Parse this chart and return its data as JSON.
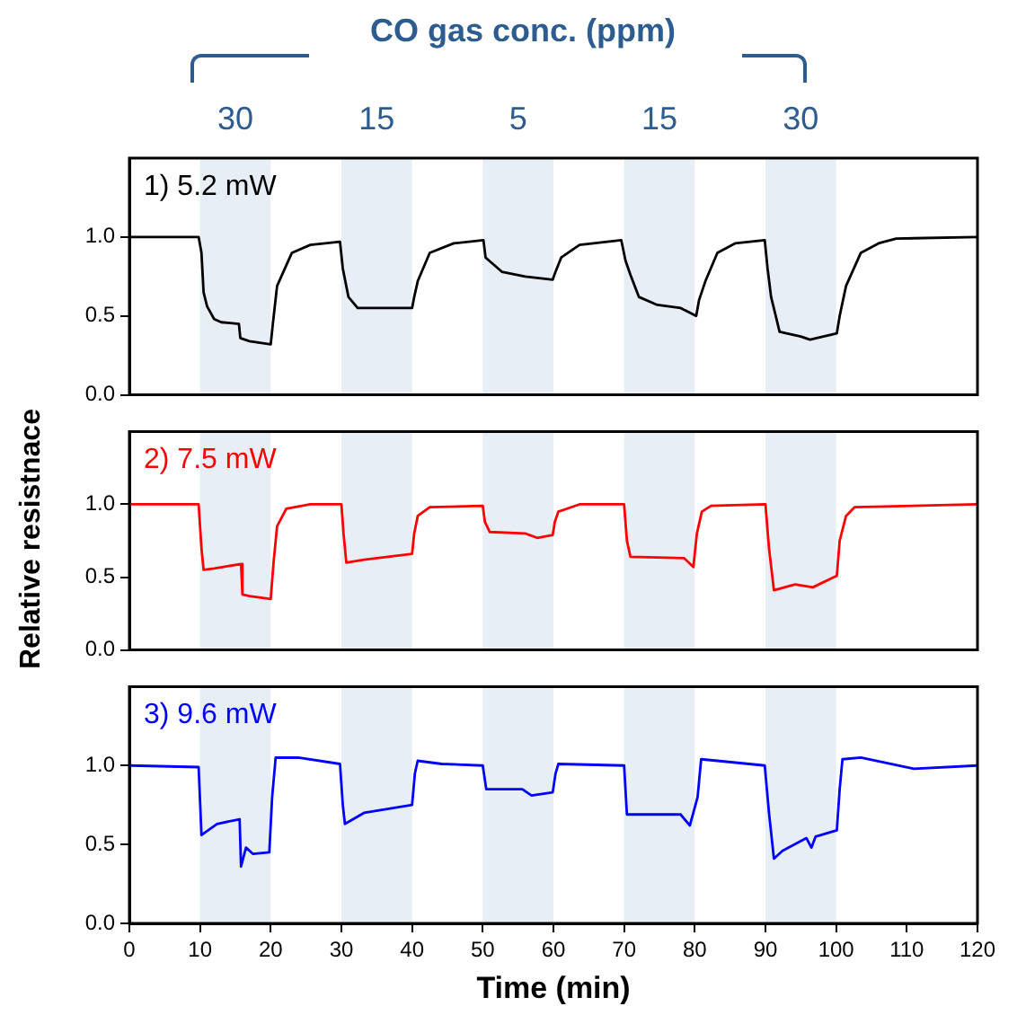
{
  "chart_data": [
    {
      "type": "line",
      "annotations": [
        "CO gas conc. (ppm)"
      ],
      "xlim": [
        0,
        120
      ],
      "xticks": [
        0,
        10,
        20,
        30,
        40,
        50,
        60,
        70,
        80,
        90,
        100,
        110,
        120
      ],
      "ylim": [
        0,
        1.5
      ],
      "yticks": [
        {
          "value": 0,
          "label": "0.0"
        },
        {
          "value": 0.5,
          "label": "0.5"
        },
        {
          "value": 1,
          "label": "1.0"
        }
      ],
      "tick_labels": "y",
      "grid": false,
      "legend": false,
      "marker": "none",
      "bands": [
        {
          "axis": "x",
          "from": 10,
          "to": 20,
          "label": "30",
          "color": "#e8eef6"
        },
        {
          "axis": "x",
          "from": 30,
          "to": 40,
          "label": "15",
          "color": "#e8eef6"
        },
        {
          "axis": "x",
          "from": 50,
          "to": 60,
          "label": "5",
          "color": "#e8eef6"
        },
        {
          "axis": "x",
          "from": 70,
          "to": 80,
          "label": "15",
          "color": "#e8eef6"
        },
        {
          "axis": "x",
          "from": 90,
          "to": 100,
          "label": "30",
          "color": "#e8eef6"
        }
      ],
      "series": [
        {
          "name": "1) 5.2 mW",
          "color": "#000000",
          "x": [
            0,
            9.8,
            10.2,
            10.5,
            11,
            12,
            13,
            15.5,
            15.7,
            17,
            20,
            20.3,
            20.9,
            23,
            25.6,
            29.8,
            30.2,
            31,
            32.3,
            40,
            40.3,
            40.8,
            42.5,
            45.9,
            50.1,
            50.4,
            52.7,
            56,
            59.9,
            60.3,
            61.1,
            63.7,
            69.6,
            70.2,
            70.9,
            72.1,
            74.7,
            78,
            80.2,
            80.6,
            81.5,
            83.2,
            85.7,
            89.9,
            90.3,
            90.8,
            92,
            95,
            96.3,
            100.1,
            100.5,
            101.4,
            103.5,
            106,
            108.5,
            120
          ],
          "values": [
            1.0,
            1.0,
            0.9,
            0.65,
            0.56,
            0.48,
            0.46,
            0.45,
            0.36,
            0.34,
            0.32,
            0.45,
            0.69,
            0.9,
            0.95,
            0.97,
            0.8,
            0.62,
            0.55,
            0.55,
            0.62,
            0.72,
            0.9,
            0.96,
            0.98,
            0.87,
            0.78,
            0.75,
            0.73,
            0.78,
            0.87,
            0.95,
            0.98,
            0.85,
            0.76,
            0.62,
            0.57,
            0.55,
            0.5,
            0.6,
            0.72,
            0.9,
            0.96,
            0.98,
            0.8,
            0.62,
            0.4,
            0.37,
            0.35,
            0.39,
            0.5,
            0.69,
            0.9,
            0.96,
            0.99,
            1.0
          ]
        }
      ]
    },
    {
      "type": "line",
      "ylabel": "Relative resistnace",
      "xlim": [
        0,
        120
      ],
      "xticks": [
        0,
        10,
        20,
        30,
        40,
        50,
        60,
        70,
        80,
        90,
        100,
        110,
        120
      ],
      "ylim": [
        0,
        1.5
      ],
      "yticks": [
        {
          "value": 0,
          "label": "0.0"
        },
        {
          "value": 0.5,
          "label": "0.5"
        },
        {
          "value": 1,
          "label": "1.0"
        }
      ],
      "tick_labels": "y",
      "grid": false,
      "legend": false,
      "marker": "none",
      "bands": [
        {
          "axis": "x",
          "from": 10,
          "to": 20,
          "color": "#e8eef6"
        },
        {
          "axis": "x",
          "from": 30,
          "to": 40,
          "color": "#e8eef6"
        },
        {
          "axis": "x",
          "from": 50,
          "to": 60,
          "color": "#e8eef6"
        },
        {
          "axis": "x",
          "from": 70,
          "to": 80,
          "color": "#e8eef6"
        },
        {
          "axis": "x",
          "from": 90,
          "to": 100,
          "color": "#e8eef6"
        }
      ],
      "series": [
        {
          "name": "2) 7.5 mW",
          "color": "#ff0000",
          "x": [
            0,
            9.8,
            10.2,
            10.5,
            12,
            15.8,
            16,
            17,
            20,
            20.4,
            20.9,
            22.2,
            25.6,
            30,
            30.3,
            30.7,
            33.2,
            40,
            40.3,
            40.8,
            42.5,
            50,
            50.3,
            51,
            56,
            57.7,
            59.9,
            60.2,
            60.7,
            63.7,
            70,
            70.4,
            70.9,
            78.5,
            79.8,
            80.3,
            81,
            82.3,
            90,
            90.5,
            91.2,
            94.2,
            96.7,
            100.1,
            100.5,
            101.4,
            102.6,
            120
          ],
          "values": [
            1.0,
            1.0,
            0.7,
            0.55,
            0.56,
            0.59,
            0.38,
            0.37,
            0.35,
            0.6,
            0.85,
            0.97,
            1.0,
            1.0,
            0.8,
            0.6,
            0.62,
            0.66,
            0.8,
            0.92,
            0.98,
            0.99,
            0.88,
            0.81,
            0.8,
            0.77,
            0.79,
            0.88,
            0.95,
            1.0,
            1.0,
            0.75,
            0.64,
            0.63,
            0.57,
            0.8,
            0.95,
            0.99,
            1.0,
            0.7,
            0.41,
            0.45,
            0.43,
            0.51,
            0.75,
            0.92,
            0.98,
            1.0
          ]
        }
      ]
    },
    {
      "type": "line",
      "xlabel": "Time (min)",
      "xlim": [
        0,
        120
      ],
      "xticks": [
        0,
        10,
        20,
        30,
        40,
        50,
        60,
        70,
        80,
        90,
        100,
        110,
        120
      ],
      "ylim": [
        0,
        1.5
      ],
      "yticks": [
        {
          "value": 0,
          "label": "0.0"
        },
        {
          "value": 0.5,
          "label": "0.5"
        },
        {
          "value": 1,
          "label": "1.0"
        }
      ],
      "grid": false,
      "legend": false,
      "marker": "none",
      "bands": [
        {
          "axis": "x",
          "from": 10,
          "to": 20,
          "color": "#e8eef6"
        },
        {
          "axis": "x",
          "from": 30,
          "to": 40,
          "color": "#e8eef6"
        },
        {
          "axis": "x",
          "from": 50,
          "to": 60,
          "color": "#e8eef6"
        },
        {
          "axis": "x",
          "from": 70,
          "to": 80,
          "color": "#e8eef6"
        },
        {
          "axis": "x",
          "from": 90,
          "to": 100,
          "color": "#e8eef6"
        }
      ],
      "series": [
        {
          "name": "3) 9.6 mW",
          "color": "#0000ff",
          "x": [
            0,
            9.8,
            10.2,
            12.4,
            15.6,
            15.8,
            16.5,
            17.5,
            19.8,
            20.2,
            20.7,
            23.9,
            29.8,
            30.2,
            30.5,
            33.2,
            40,
            40.4,
            40.8,
            44.2,
            50,
            50.5,
            55.6,
            56.9,
            59.9,
            60.3,
            60.7,
            70,
            70.4,
            78,
            79.3,
            80.4,
            80.9,
            83.2,
            89.9,
            90.5,
            91.2,
            92.4,
            95.8,
            96.5,
            97.1,
            100.1,
            100.5,
            100.9,
            103.5,
            111,
            120
          ],
          "values": [
            1.0,
            0.99,
            0.56,
            0.63,
            0.66,
            0.36,
            0.48,
            0.44,
            0.45,
            0.8,
            1.05,
            1.05,
            1.01,
            0.75,
            0.63,
            0.7,
            0.75,
            0.95,
            1.03,
            1.01,
            1.0,
            0.85,
            0.85,
            0.81,
            0.83,
            0.95,
            1.01,
            1.0,
            0.69,
            0.69,
            0.62,
            0.8,
            1.04,
            1.03,
            1.0,
            0.7,
            0.41,
            0.46,
            0.54,
            0.48,
            0.55,
            0.59,
            0.85,
            1.04,
            1.05,
            0.98,
            1.0
          ]
        }
      ]
    }
  ]
}
